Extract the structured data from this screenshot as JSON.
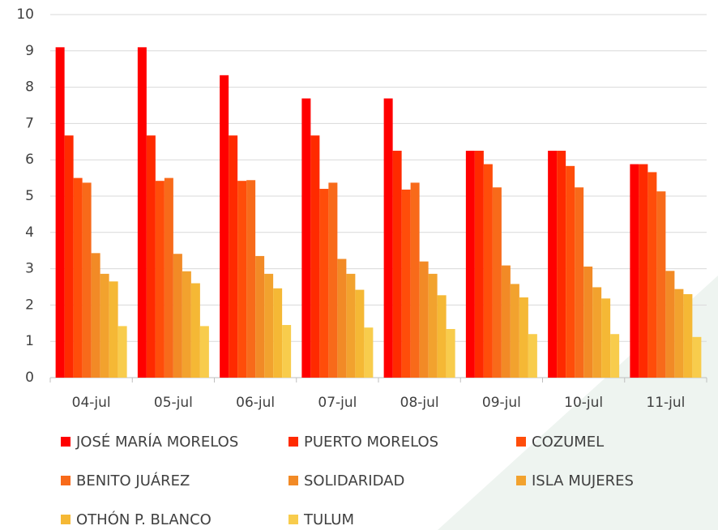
{
  "chart_data": {
    "type": "bar",
    "categories": [
      "04-jul",
      "05-jul",
      "06-jul",
      "07-jul",
      "08-jul",
      "09-jul",
      "10-jul",
      "11-jul"
    ],
    "series": [
      {
        "name": "JOSÉ MARÍA MORELOS",
        "color": "#ff0000",
        "values": [
          9.1,
          9.1,
          8.33,
          7.69,
          7.69,
          6.25,
          6.25,
          5.88
        ]
      },
      {
        "name": "PUERTO MORELOS",
        "color": "#ff2a00",
        "values": [
          6.67,
          6.67,
          6.67,
          6.67,
          6.25,
          6.25,
          6.25,
          5.88
        ]
      },
      {
        "name": "COZUMEL",
        "color": "#ff4d0a",
        "values": [
          5.5,
          5.42,
          5.42,
          5.2,
          5.18,
          5.88,
          5.83,
          5.66
        ]
      },
      {
        "name": "BENITO JUÁREZ",
        "color": "#f86a1a",
        "values": [
          5.37,
          5.5,
          5.44,
          5.37,
          5.37,
          5.24,
          5.24,
          5.13
        ]
      },
      {
        "name": "SOLIDARIDAD",
        "color": "#f28a26",
        "values": [
          3.43,
          3.41,
          3.35,
          3.27,
          3.2,
          3.09,
          3.06,
          2.94
        ]
      },
      {
        "name": "ISLA MUJERES",
        "color": "#f2a22e",
        "values": [
          2.86,
          2.93,
          2.86,
          2.86,
          2.86,
          2.58,
          2.49,
          2.44
        ]
      },
      {
        "name": "OTHÓN P. BLANCO",
        "color": "#f5b835",
        "values": [
          2.65,
          2.6,
          2.46,
          2.42,
          2.27,
          2.21,
          2.18,
          2.3
        ]
      },
      {
        "name": "TULUM",
        "color": "#f8cc4c",
        "values": [
          1.42,
          1.42,
          1.45,
          1.38,
          1.34,
          1.2,
          1.2,
          1.12
        ]
      }
    ],
    "ylim": [
      0,
      10
    ],
    "yticks": [
      0,
      1,
      2,
      3,
      4,
      5,
      6,
      7,
      8,
      9,
      10
    ],
    "grid": true,
    "legend": "bottom"
  }
}
